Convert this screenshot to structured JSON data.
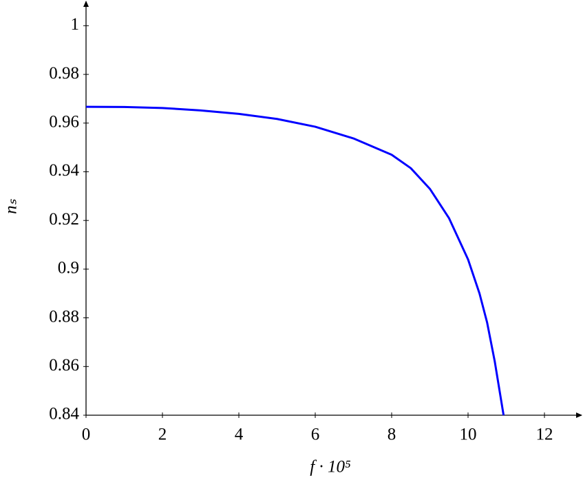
{
  "chart_data": {
    "type": "line",
    "xlabel": "f · 10⁵",
    "ylabel": "nₛ",
    "xlim": [
      0,
      13
    ],
    "ylim": [
      0.84,
      1.01
    ],
    "xticks": [
      0,
      2,
      4,
      6,
      8,
      10,
      12
    ],
    "yticks": [
      0.84,
      0.86,
      0.88,
      0.9,
      0.92,
      0.94,
      0.96,
      0.98,
      1
    ],
    "series": [
      {
        "color": "#0000ff",
        "x": [
          0,
          1,
          2,
          3,
          4,
          5,
          6,
          7,
          8,
          8.5,
          9,
          9.5,
          10,
          10.3,
          10.5,
          10.7,
          10.93
        ],
        "values": [
          0.9667,
          0.9666,
          0.9662,
          0.9652,
          0.9638,
          0.9617,
          0.9585,
          0.9537,
          0.947,
          0.9415,
          0.933,
          0.921,
          0.904,
          0.89,
          0.878,
          0.862,
          0.84
        ]
      }
    ]
  }
}
